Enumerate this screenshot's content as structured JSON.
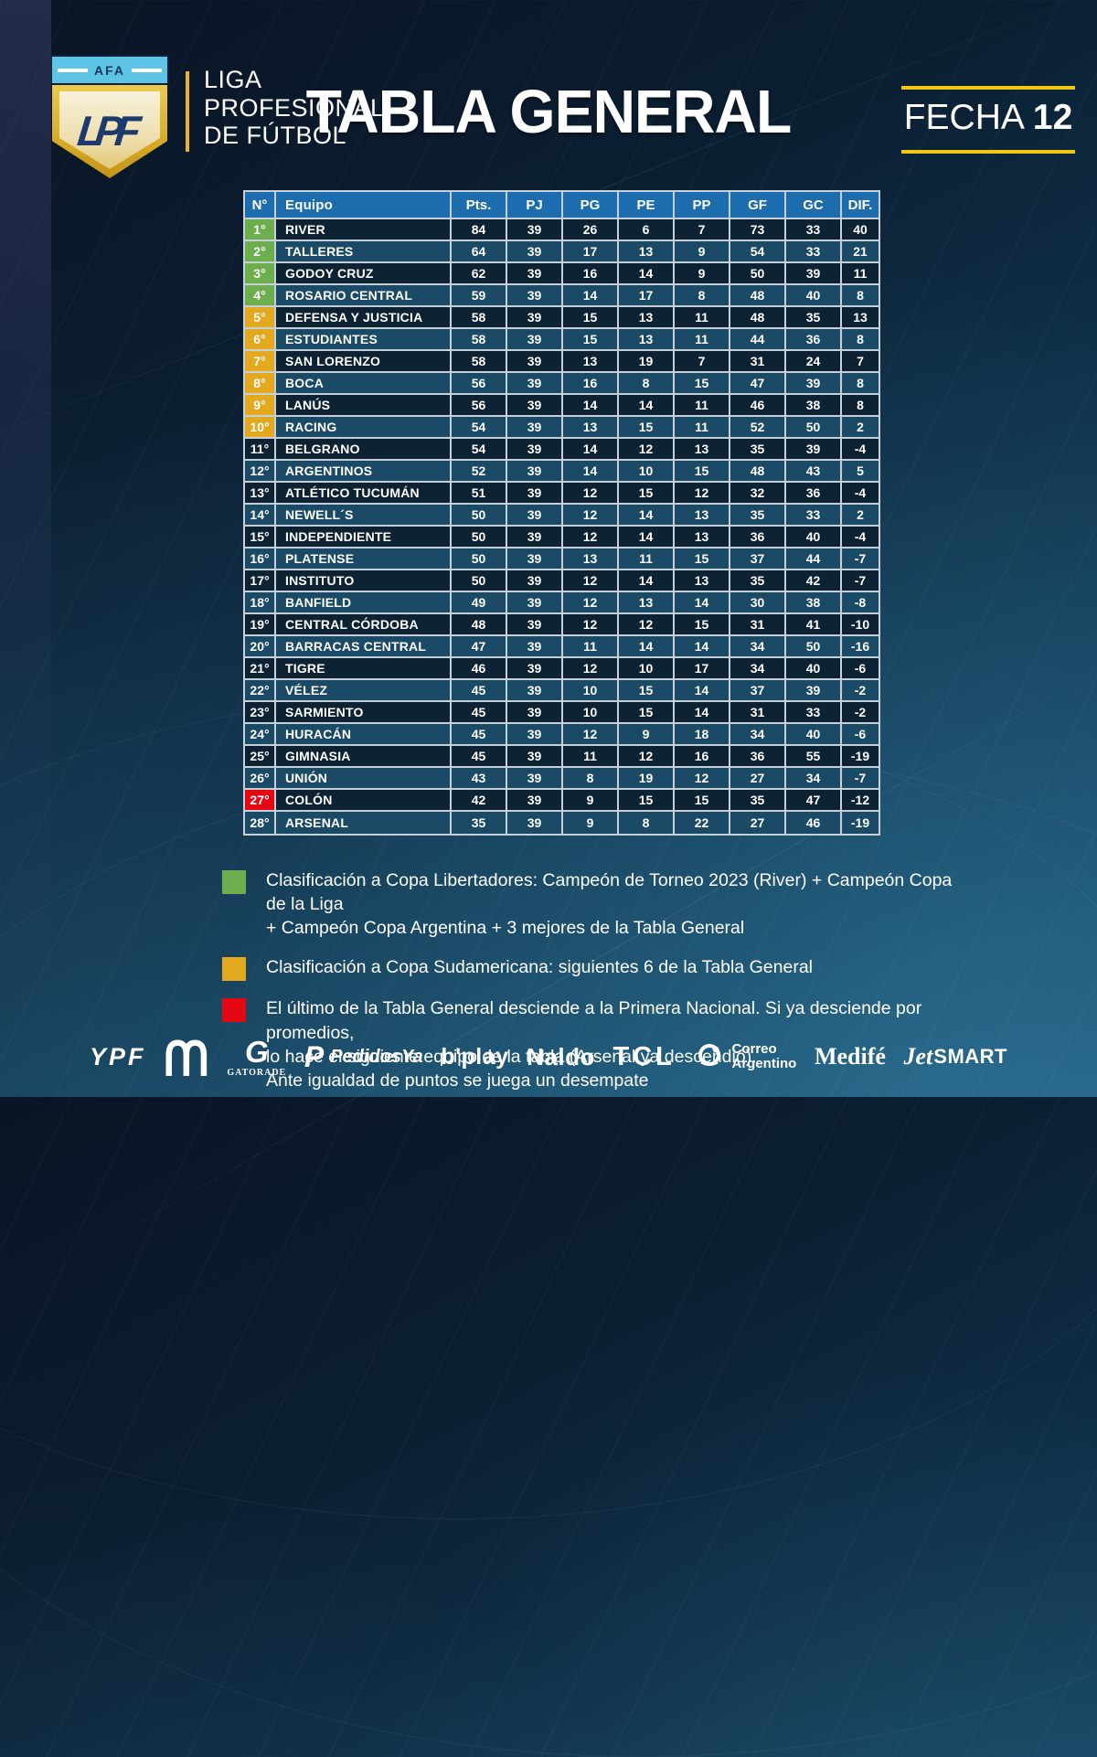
{
  "header": {
    "logo": {
      "afa_label": "AFA",
      "monogram": "LPF",
      "title_lines": [
        "LIGA",
        "PROFESIONAL",
        "DE FÚTBOL"
      ]
    },
    "title": "TABLA GENERAL",
    "fecha_label": "FECHA",
    "fecha_number": "12"
  },
  "colors": {
    "libertadores_green": "#6cae4d",
    "sudamericana_yellow": "#e2a91f",
    "descenso_red": "#e30613",
    "header_blue": "#1d6dae",
    "accent_yellow": "#f0c713"
  },
  "table": {
    "columns": [
      "N°",
      "Equipo",
      "Pts.",
      "PJ",
      "PG",
      "PE",
      "PP",
      "GF",
      "GC",
      "DIF."
    ],
    "rows": [
      {
        "pos": "1°",
        "team": "RIVER",
        "pts": 84,
        "pj": 39,
        "pg": 26,
        "pe": 6,
        "pp": 7,
        "gf": 73,
        "gc": 33,
        "dif": 40,
        "zone": "green"
      },
      {
        "pos": "2°",
        "team": "TALLERES",
        "pts": 64,
        "pj": 39,
        "pg": 17,
        "pe": 13,
        "pp": 9,
        "gf": 54,
        "gc": 33,
        "dif": 21,
        "zone": "green"
      },
      {
        "pos": "3°",
        "team": "GODOY CRUZ",
        "pts": 62,
        "pj": 39,
        "pg": 16,
        "pe": 14,
        "pp": 9,
        "gf": 50,
        "gc": 39,
        "dif": 11,
        "zone": "green"
      },
      {
        "pos": "4°",
        "team": "ROSARIO CENTRAL",
        "pts": 59,
        "pj": 39,
        "pg": 14,
        "pe": 17,
        "pp": 8,
        "gf": 48,
        "gc": 40,
        "dif": 8,
        "zone": "green"
      },
      {
        "pos": "5°",
        "team": "DEFENSA Y JUSTICIA",
        "pts": 58,
        "pj": 39,
        "pg": 15,
        "pe": 13,
        "pp": 11,
        "gf": 48,
        "gc": 35,
        "dif": 13,
        "zone": "yellow"
      },
      {
        "pos": "6°",
        "team": "ESTUDIANTES",
        "pts": 58,
        "pj": 39,
        "pg": 15,
        "pe": 13,
        "pp": 11,
        "gf": 44,
        "gc": 36,
        "dif": 8,
        "zone": "yellow"
      },
      {
        "pos": "7°",
        "team": "SAN LORENZO",
        "pts": 58,
        "pj": 39,
        "pg": 13,
        "pe": 19,
        "pp": 7,
        "gf": 31,
        "gc": 24,
        "dif": 7,
        "zone": "yellow"
      },
      {
        "pos": "8°",
        "team": "BOCA",
        "pts": 56,
        "pj": 39,
        "pg": 16,
        "pe": 8,
        "pp": 15,
        "gf": 47,
        "gc": 39,
        "dif": 8,
        "zone": "yellow"
      },
      {
        "pos": "9°",
        "team": "LANÚS",
        "pts": 56,
        "pj": 39,
        "pg": 14,
        "pe": 14,
        "pp": 11,
        "gf": 46,
        "gc": 38,
        "dif": 8,
        "zone": "yellow"
      },
      {
        "pos": "10°",
        "team": "RACING",
        "pts": 54,
        "pj": 39,
        "pg": 13,
        "pe": 15,
        "pp": 11,
        "gf": 52,
        "gc": 50,
        "dif": 2,
        "zone": "yellow"
      },
      {
        "pos": "11°",
        "team": "BELGRANO",
        "pts": 54,
        "pj": 39,
        "pg": 14,
        "pe": 12,
        "pp": 13,
        "gf": 35,
        "gc": 39,
        "dif": -4,
        "zone": "none"
      },
      {
        "pos": "12°",
        "team": "ARGENTINOS",
        "pts": 52,
        "pj": 39,
        "pg": 14,
        "pe": 10,
        "pp": 15,
        "gf": 48,
        "gc": 43,
        "dif": 5,
        "zone": "none"
      },
      {
        "pos": "13°",
        "team": "ATLÉTICO TUCUMÁN",
        "pts": 51,
        "pj": 39,
        "pg": 12,
        "pe": 15,
        "pp": 12,
        "gf": 32,
        "gc": 36,
        "dif": -4,
        "zone": "none"
      },
      {
        "pos": "14°",
        "team": "NEWELL´S",
        "pts": 50,
        "pj": 39,
        "pg": 12,
        "pe": 14,
        "pp": 13,
        "gf": 35,
        "gc": 33,
        "dif": 2,
        "zone": "none"
      },
      {
        "pos": "15°",
        "team": "INDEPENDIENTE",
        "pts": 50,
        "pj": 39,
        "pg": 12,
        "pe": 14,
        "pp": 13,
        "gf": 36,
        "gc": 40,
        "dif": -4,
        "zone": "none"
      },
      {
        "pos": "16°",
        "team": "PLATENSE",
        "pts": 50,
        "pj": 39,
        "pg": 13,
        "pe": 11,
        "pp": 15,
        "gf": 37,
        "gc": 44,
        "dif": -7,
        "zone": "none"
      },
      {
        "pos": "17°",
        "team": "INSTITUTO",
        "pts": 50,
        "pj": 39,
        "pg": 12,
        "pe": 14,
        "pp": 13,
        "gf": 35,
        "gc": 42,
        "dif": -7,
        "zone": "none"
      },
      {
        "pos": "18°",
        "team": "BANFIELD",
        "pts": 49,
        "pj": 39,
        "pg": 12,
        "pe": 13,
        "pp": 14,
        "gf": 30,
        "gc": 38,
        "dif": -8,
        "zone": "none"
      },
      {
        "pos": "19°",
        "team": "CENTRAL CÓRDOBA",
        "pts": 48,
        "pj": 39,
        "pg": 12,
        "pe": 12,
        "pp": 15,
        "gf": 31,
        "gc": 41,
        "dif": -10,
        "zone": "none"
      },
      {
        "pos": "20°",
        "team": "BARRACAS CENTRAL",
        "pts": 47,
        "pj": 39,
        "pg": 11,
        "pe": 14,
        "pp": 14,
        "gf": 34,
        "gc": 50,
        "dif": -16,
        "zone": "none"
      },
      {
        "pos": "21°",
        "team": "TIGRE",
        "pts": 46,
        "pj": 39,
        "pg": 12,
        "pe": 10,
        "pp": 17,
        "gf": 34,
        "gc": 40,
        "dif": -6,
        "zone": "none"
      },
      {
        "pos": "22°",
        "team": "VÉLEZ",
        "pts": 45,
        "pj": 39,
        "pg": 10,
        "pe": 15,
        "pp": 14,
        "gf": 37,
        "gc": 39,
        "dif": -2,
        "zone": "none"
      },
      {
        "pos": "23°",
        "team": "SARMIENTO",
        "pts": 45,
        "pj": 39,
        "pg": 10,
        "pe": 15,
        "pp": 14,
        "gf": 31,
        "gc": 33,
        "dif": -2,
        "zone": "none"
      },
      {
        "pos": "24°",
        "team": "HURACÁN",
        "pts": 45,
        "pj": 39,
        "pg": 12,
        "pe": 9,
        "pp": 18,
        "gf": 34,
        "gc": 40,
        "dif": -6,
        "zone": "none"
      },
      {
        "pos": "25°",
        "team": "GIMNASIA",
        "pts": 45,
        "pj": 39,
        "pg": 11,
        "pe": 12,
        "pp": 16,
        "gf": 36,
        "gc": 55,
        "dif": -19,
        "zone": "none"
      },
      {
        "pos": "26°",
        "team": "UNIÓN",
        "pts": 43,
        "pj": 39,
        "pg": 8,
        "pe": 19,
        "pp": 12,
        "gf": 27,
        "gc": 34,
        "dif": -7,
        "zone": "none"
      },
      {
        "pos": "27°",
        "team": "COLÓN",
        "pts": 42,
        "pj": 39,
        "pg": 9,
        "pe": 15,
        "pp": 15,
        "gf": 35,
        "gc": 47,
        "dif": -12,
        "zone": "red"
      },
      {
        "pos": "28°",
        "team": "ARSENAL",
        "pts": 35,
        "pj": 39,
        "pg": 9,
        "pe": 8,
        "pp": 22,
        "gf": 27,
        "gc": 46,
        "dif": -19,
        "zone": "none"
      }
    ]
  },
  "legend": [
    {
      "color": "#6cae4d",
      "lines": [
        "Clasificación a Copa Libertadores: Campeón de Torneo 2023 (River) + Campeón Copa de la Liga",
        "+ Campeón Copa Argentina + 3 mejores de la Tabla General"
      ]
    },
    {
      "color": "#e2a91f",
      "lines": [
        "Clasificación a Copa Sudamericana: siguientes 6 de la Tabla General"
      ]
    },
    {
      "color": "#e30613",
      "lines": [
        "El último de la Tabla General desciende a la Primera Nacional. Si ya desciende por promedios,",
        "lo hace el siguiente equipo de la tabla (Arsenal ya descendió).",
        "Ante igualdad de puntos se juega un desempate"
      ]
    }
  ],
  "sponsors": [
    {
      "id": "ypf",
      "label": "YPF"
    },
    {
      "id": "mcdonalds",
      "label": ""
    },
    {
      "id": "gatorade",
      "icon": "G",
      "label": "GATORADE"
    },
    {
      "id": "pedidosya",
      "icon": "P",
      "label": "PedidosYa"
    },
    {
      "id": "bplay",
      "label": "b'play"
    },
    {
      "id": "naldo",
      "label": "Naldo"
    },
    {
      "id": "tcl",
      "label": "TCL"
    },
    {
      "id": "correo-argentino",
      "lines": [
        "Correo",
        "Argentino"
      ]
    },
    {
      "id": "medife",
      "label": "Medifé"
    },
    {
      "id": "jetsmart",
      "label_script": "Jet",
      "label_bold": "SMART"
    }
  ]
}
